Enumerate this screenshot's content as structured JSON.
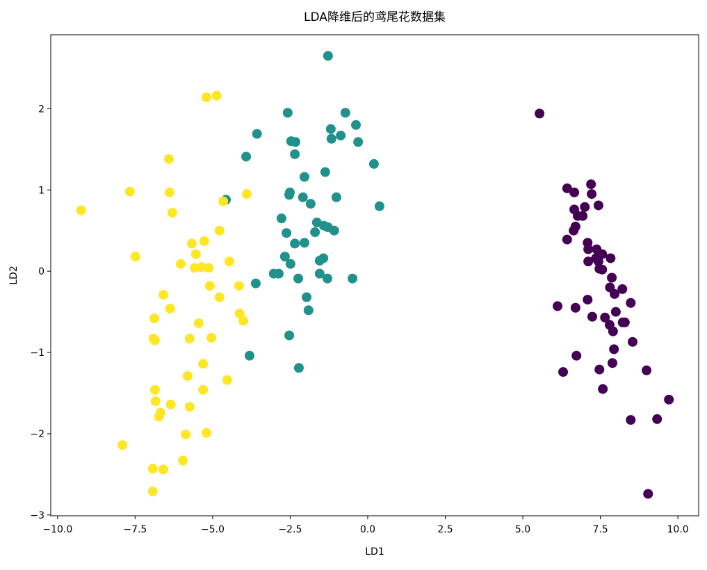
{
  "chart_data": {
    "type": "scatter",
    "title": "LDA降维后的鸢尾花数据集",
    "x_label": "LD1",
    "y_label": "LD2",
    "xlim": [
      -10.22,
      10.67
    ],
    "ylim": [
      -3.01,
      2.91
    ],
    "xticks": [
      {
        "value": -10,
        "label": "−10.0"
      },
      {
        "value": -7.5,
        "label": "−7.5"
      },
      {
        "value": -5,
        "label": "−5.0"
      },
      {
        "value": -2.5,
        "label": "−2.5"
      },
      {
        "value": 0,
        "label": "0.0"
      },
      2.5,
      {
        "value": 5,
        "label": "5.0"
      },
      7.5,
      {
        "value": 10,
        "label": "10.0"
      }
    ],
    "yticks": [
      {
        "value": -3,
        "label": "−3"
      },
      {
        "value": -2,
        "label": "−2"
      },
      {
        "value": -1,
        "label": "−1"
      },
      0,
      1,
      2
    ],
    "grid": false,
    "series": [
      {
        "color": "#440154",
        "x": [
          5.54,
          6.43,
          6.66,
          7.2,
          7.22,
          7.44,
          6.66,
          7.0,
          6.77,
          6.93,
          6.7,
          6.64,
          6.43,
          7.09,
          7.11,
          7.38,
          7.56,
          7.36,
          7.83,
          7.11,
          7.44,
          7.47,
          7.56,
          7.87,
          8.21,
          7.81,
          7.96,
          7.09,
          6.12,
          6.7,
          8.48,
          7.24,
          7.65,
          8.0,
          7.8,
          8.22,
          8.29,
          7.91,
          8.54,
          7.94,
          7.89,
          6.73,
          7.47,
          6.3,
          8.99,
          7.58,
          9.71,
          8.48,
          9.33,
          9.04
        ],
        "y": [
          1.94,
          1.02,
          0.97,
          1.07,
          0.95,
          0.81,
          0.76,
          0.79,
          0.68,
          0.68,
          0.55,
          0.5,
          0.39,
          0.35,
          0.27,
          0.27,
          0.21,
          0.16,
          0.16,
          0.12,
          0.12,
          0.03,
          0.02,
          -0.08,
          -0.22,
          -0.2,
          -0.28,
          -0.35,
          -0.43,
          -0.45,
          -0.39,
          -0.56,
          -0.57,
          -0.5,
          -0.66,
          -0.63,
          -0.63,
          -0.74,
          -0.87,
          -0.96,
          -1.13,
          -1.04,
          -1.21,
          -1.24,
          -1.22,
          -1.45,
          -1.58,
          -1.83,
          -1.82,
          -2.74
        ]
      },
      {
        "color": "#21918c",
        "x": [
          -1.28,
          -2.58,
          -0.72,
          -3.57,
          -1.19,
          -0.38,
          -2.47,
          -2.33,
          -0.87,
          -1.17,
          -0.31,
          -2.35,
          -3.92,
          0.2,
          -1.37,
          -2.04,
          -2.51,
          -2.53,
          -2.09,
          -1.01,
          -1.84,
          0.38,
          -2.78,
          -1.64,
          -1.41,
          -1.28,
          -1.08,
          -1.7,
          -2.62,
          -2.35,
          -2.04,
          -2.67,
          -2.49,
          -1.43,
          -1.55,
          -3.03,
          -2.87,
          -1.55,
          -1.3,
          -2.24,
          -0.49,
          -3.61,
          -1.97,
          -1.91,
          -2.53,
          -3.81,
          -2.22,
          -4.57
        ],
        "y": [
          2.65,
          1.95,
          1.95,
          1.69,
          1.75,
          1.8,
          1.6,
          1.59,
          1.67,
          1.63,
          1.59,
          1.44,
          1.41,
          1.32,
          1.22,
          1.16,
          0.97,
          0.94,
          0.91,
          0.91,
          0.83,
          0.8,
          0.65,
          0.6,
          0.56,
          0.54,
          0.5,
          0.48,
          0.47,
          0.34,
          0.35,
          0.18,
          0.09,
          0.16,
          0.13,
          -0.03,
          -0.03,
          -0.03,
          -0.09,
          -0.09,
          -0.09,
          -0.15,
          -0.32,
          -0.48,
          -0.79,
          -1.04,
          -1.19,
          0.88
        ]
      },
      {
        "color": "#fde725",
        "x": [
          -9.24,
          -7.67,
          -7.49,
          -7.91,
          -6.93,
          -6.93,
          -6.59,
          -6.88,
          -6.91,
          -6.86,
          -6.59,
          -6.37,
          -6.41,
          -6.39,
          -6.3,
          -6.03,
          -5.67,
          -5.54,
          -5.58,
          -5.36,
          -5.13,
          -5.27,
          -5.2,
          -4.87,
          -4.66,
          -4.78,
          -4.46,
          -5.09,
          -4.78,
          -5.45,
          -5.74,
          -5.04,
          -5.31,
          -5.81,
          -5.31,
          -5.74,
          -6.35,
          -6.86,
          -6.84,
          -6.68,
          -6.73,
          -5.87,
          -5.2,
          -5.96,
          -4.53,
          -4.15,
          -4.13,
          -4.01,
          -3.9
        ],
        "y": [
          0.75,
          0.98,
          0.18,
          -2.14,
          -2.71,
          -2.43,
          -2.44,
          -0.58,
          -0.83,
          -0.85,
          -0.29,
          -0.46,
          1.38,
          0.97,
          0.72,
          0.09,
          0.34,
          0.21,
          0.04,
          0.05,
          0.04,
          0.37,
          2.14,
          2.16,
          0.86,
          0.5,
          0.12,
          -0.18,
          -0.32,
          -0.64,
          -0.83,
          -0.82,
          -1.14,
          -1.29,
          -1.46,
          -1.67,
          -1.64,
          -1.46,
          -1.6,
          -1.74,
          -1.79,
          -2.01,
          -1.99,
          -2.33,
          -1.34,
          -0.18,
          -0.52,
          -0.61,
          0.95
        ]
      }
    ]
  }
}
